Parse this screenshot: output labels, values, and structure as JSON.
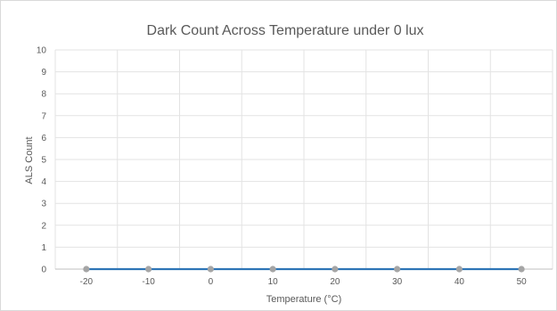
{
  "chart_data": {
    "type": "line",
    "title": "Dark Count Across Temperature under 0 lux",
    "xlabel": "Temperature (°C)",
    "ylabel": "ALS Count",
    "x": [
      -20,
      -10,
      0,
      10,
      20,
      30,
      40,
      50
    ],
    "x_tick_labels": [
      "-20",
      "-10",
      "0",
      "10",
      "20",
      "30",
      "40",
      "50"
    ],
    "y_tick_labels": [
      "0",
      "1",
      "2",
      "3",
      "4",
      "5",
      "6",
      "7",
      "8",
      "9",
      "10"
    ],
    "ylim": [
      0,
      10
    ],
    "grid": "vertical and horizontal",
    "series": [
      {
        "values": [
          0,
          0,
          0,
          0,
          0,
          0,
          0,
          0
        ],
        "color": "#2e75b6",
        "marker_color": "#a5a5a5"
      }
    ]
  }
}
